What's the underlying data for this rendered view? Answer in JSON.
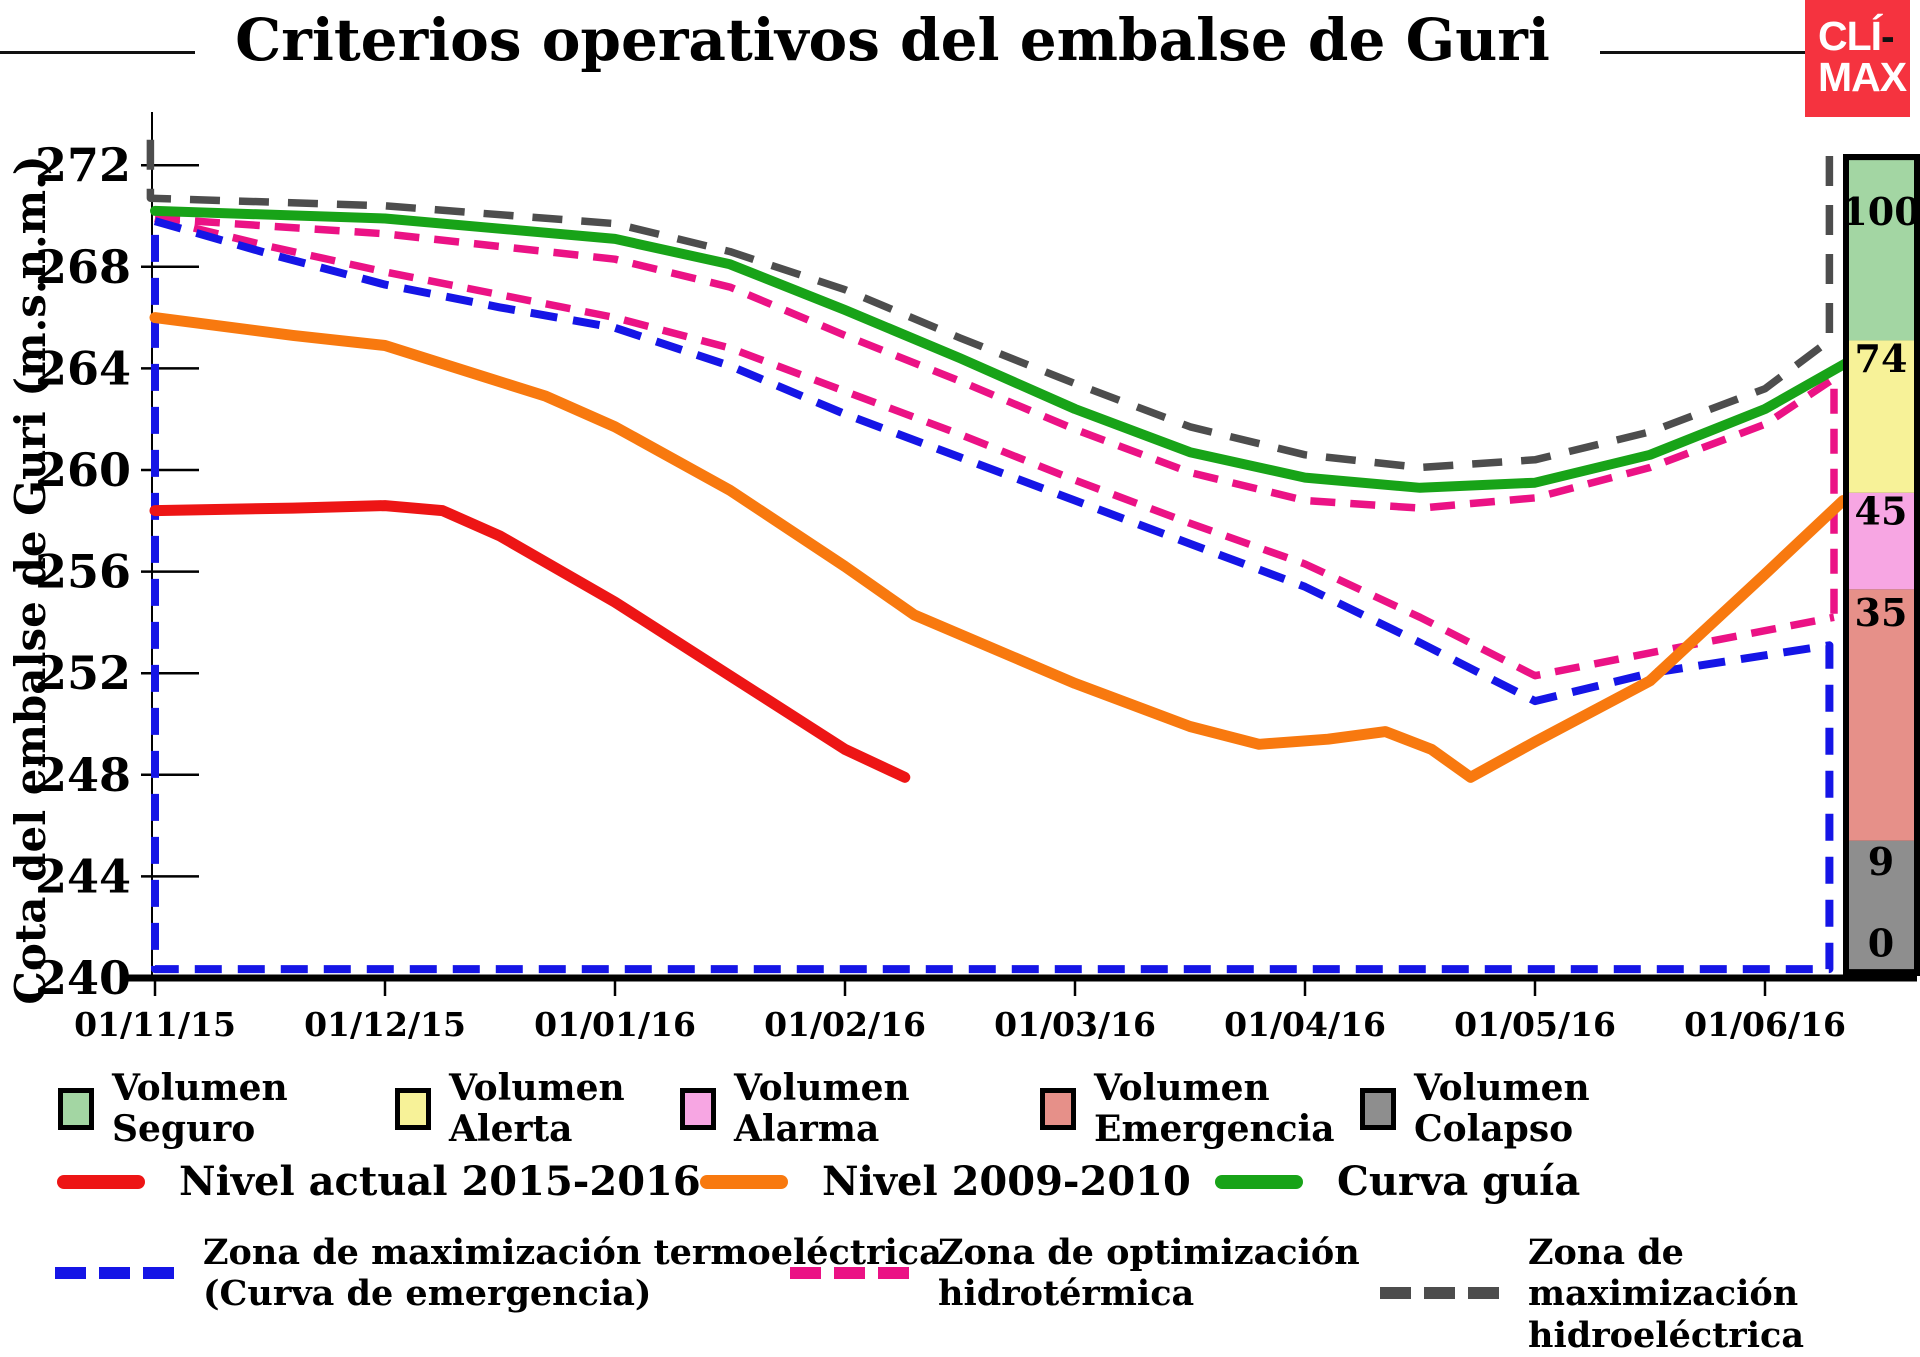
{
  "header": {
    "title": "Criterios operativos del embalse de Guri",
    "logo": {
      "top": "CLÍ",
      "dash": "-",
      "bottom": "MAX",
      "bg_color": "#f5333f"
    }
  },
  "y_axis": {
    "label": "Cota del embalse de Guri (m.s.n.m.)",
    "ticks": [
      272,
      268,
      264,
      260,
      256,
      252,
      248,
      244,
      240
    ]
  },
  "x_axis": {
    "ticks": [
      "01/11/15",
      "01/12/15",
      "01/01/16",
      "01/02/16",
      "01/03/16",
      "01/04/16",
      "01/05/16",
      "01/06/16"
    ]
  },
  "colorbar": {
    "border_color": "#000000",
    "sections": [
      {
        "name": "volumen-seguro",
        "color": "#a3d6a3",
        "from": 265.1,
        "to": 272.2
      },
      {
        "name": "volumen-alerta",
        "color": "#f7f298",
        "from": 259.1,
        "to": 265.1
      },
      {
        "name": "volumen-alarma",
        "color": "#f7a6e3",
        "from": 255.3,
        "to": 259.1
      },
      {
        "name": "volumen-emergencia",
        "color": "#e69089",
        "from": 245.4,
        "to": 255.3
      },
      {
        "name": "volumen-colapso",
        "color": "#8e8e8e",
        "from": 240.35,
        "to": 245.4
      }
    ],
    "labels": [
      {
        "text": "100",
        "at": 270.2
      },
      {
        "text": "74",
        "at": 264.4
      },
      {
        "text": "45",
        "at": 258.4
      },
      {
        "text": "35",
        "at": 254.4
      },
      {
        "text": "9",
        "at": 244.6
      },
      {
        "text": "0",
        "at": 241.4
      }
    ]
  },
  "legend": {
    "zones": [
      {
        "line1": "Volumen",
        "line2": "Seguro",
        "color": "#a3d6a3"
      },
      {
        "line1": "Volumen",
        "line2": "Alerta",
        "color": "#f7f298"
      },
      {
        "line1": "Volumen",
        "line2": "Alarma",
        "color": "#f7a6e3"
      },
      {
        "line1": "Volumen",
        "line2": "Emergencia",
        "color": "#e69089"
      },
      {
        "line1": "Volumen",
        "line2": "Colapso",
        "color": "#8e8e8e"
      }
    ],
    "lines": [
      {
        "label": "Nivel actual 2015-2016",
        "color": "#ed1515"
      },
      {
        "label": "Nivel 2009-2010",
        "color": "#f8790f"
      },
      {
        "label": "Curva guía",
        "color": "#18a318"
      }
    ],
    "dashed": [
      {
        "line1": "Zona de maximización termoeléctrica",
        "line2": "(Curva de emergencia)",
        "color": "#1515e6"
      },
      {
        "line1": "Zona de optimización",
        "line2": "hidrotérmica",
        "color": "#eb1285"
      },
      {
        "line1": "Zona de maximización",
        "line2": "hidroeléctrica",
        "color": "#4d4d4d"
      }
    ]
  },
  "chart_data": {
    "type": "line",
    "title": "Criterios operativos del embalse de Guri",
    "xlabel": "",
    "ylabel": "Cota del embalse de Guri (m.s.n.m.)",
    "x_unit": "meses desde 01/11/15 (un tick por mes)",
    "ylim": [
      240,
      273.2
    ],
    "grid": false,
    "series": [
      {
        "name": "Zona de maximización hidroeléctrica",
        "color": "#4d4d4d",
        "style": "dashed",
        "dash": "30 19",
        "width": 7.5,
        "points": [
          [
            -0.02,
            273.0
          ],
          [
            -0.02,
            270.7
          ],
          [
            1,
            270.4
          ],
          [
            2,
            269.7
          ],
          [
            2.5,
            268.6
          ],
          [
            3,
            267.1
          ],
          [
            3.5,
            265.2
          ],
          [
            4,
            263.4
          ],
          [
            4.5,
            261.7
          ],
          [
            5,
            260.6
          ],
          [
            5.5,
            260.1
          ],
          [
            6,
            260.4
          ],
          [
            6.5,
            261.5
          ],
          [
            7,
            263.2
          ],
          [
            7.28,
            265.1
          ],
          [
            7.28,
            272.4
          ]
        ]
      },
      {
        "name": "Zona de optimización hidrotérmica (límite superior)",
        "color": "#eb1285",
        "style": "dashed",
        "dash": "25 15",
        "width": 7.5,
        "points": [
          [
            0,
            269.9
          ],
          [
            1,
            269.3
          ],
          [
            2,
            268.3
          ],
          [
            2.5,
            267.2
          ],
          [
            3,
            265.3
          ],
          [
            3.5,
            263.5
          ],
          [
            4,
            261.6
          ],
          [
            4.5,
            259.9
          ],
          [
            5,
            258.8
          ],
          [
            5.5,
            258.5
          ],
          [
            6,
            258.9
          ],
          [
            6.5,
            260.1
          ],
          [
            7,
            261.8
          ],
          [
            7.3,
            263.6
          ],
          [
            7.3,
            254.2
          ]
        ]
      },
      {
        "name": "Zona de optimización hidrotérmica (límite inferior)",
        "color": "#eb1285",
        "style": "dashed",
        "dash": "25 15",
        "width": 7.5,
        "points": [
          [
            0,
            269.9
          ],
          [
            0.5,
            268.8
          ],
          [
            1,
            267.8
          ],
          [
            2,
            266.0
          ],
          [
            2.5,
            264.8
          ],
          [
            3,
            263.1
          ],
          [
            3.5,
            261.4
          ],
          [
            4,
            259.6
          ],
          [
            4.5,
            257.9
          ],
          [
            5,
            256.3
          ],
          [
            5.5,
            254.2
          ],
          [
            6,
            251.9
          ],
          [
            6.5,
            252.8
          ],
          [
            7.3,
            254.2
          ]
        ]
      },
      {
        "name": "Zona de maximización termoeléctrica (Curva de emergencia)",
        "color": "#1515e6",
        "style": "dashed",
        "dash": "27 16",
        "width": 8,
        "points": [
          [
            0,
            269.8
          ],
          [
            0.5,
            268.5
          ],
          [
            1,
            267.3
          ],
          [
            1.5,
            266.4
          ],
          [
            2,
            265.6
          ],
          [
            2.5,
            264.1
          ],
          [
            3,
            262.2
          ],
          [
            3.5,
            260.5
          ],
          [
            4,
            258.8
          ],
          [
            4.5,
            257.1
          ],
          [
            5,
            255.4
          ],
          [
            5.5,
            253.2
          ],
          [
            6,
            250.9
          ],
          [
            6.5,
            252.0
          ],
          [
            7.28,
            253.1
          ],
          [
            7.28,
            240.35
          ],
          [
            0,
            240.35
          ],
          [
            0,
            269.8
          ]
        ]
      },
      {
        "name": "Curva guía",
        "color": "#18a318",
        "style": "solid",
        "width": 10,
        "points": [
          [
            0,
            270.2
          ],
          [
            1,
            269.9
          ],
          [
            2,
            269.1
          ],
          [
            2.5,
            268.1
          ],
          [
            3,
            266.3
          ],
          [
            3.5,
            264.4
          ],
          [
            4,
            262.4
          ],
          [
            4.5,
            260.7
          ],
          [
            5,
            259.7
          ],
          [
            5.5,
            259.3
          ],
          [
            6,
            259.5
          ],
          [
            6.5,
            260.6
          ],
          [
            7,
            262.4
          ],
          [
            7.37,
            264.3
          ]
        ]
      },
      {
        "name": "Nivel 2009-2010",
        "color": "#f8790f",
        "style": "solid",
        "width": 11,
        "points": [
          [
            0,
            266.0
          ],
          [
            0.6,
            265.3
          ],
          [
            1,
            264.9
          ],
          [
            1.7,
            262.9
          ],
          [
            2,
            261.7
          ],
          [
            2.5,
            259.2
          ],
          [
            3,
            256.2
          ],
          [
            3.3,
            254.3
          ],
          [
            4,
            251.6
          ],
          [
            4.5,
            249.9
          ],
          [
            4.8,
            249.2
          ],
          [
            5.1,
            249.4
          ],
          [
            5.35,
            249.7
          ],
          [
            5.55,
            249.0
          ],
          [
            5.72,
            247.9
          ],
          [
            6,
            249.3
          ],
          [
            6.5,
            251.7
          ],
          [
            7,
            255.9
          ],
          [
            7.34,
            258.8
          ]
        ]
      },
      {
        "name": "Nivel actual 2015-2016",
        "color": "#ed1515",
        "style": "solid",
        "width": 11,
        "points": [
          [
            0,
            258.4
          ],
          [
            0.6,
            258.5
          ],
          [
            1,
            258.6
          ],
          [
            1.25,
            258.4
          ],
          [
            1.5,
            257.4
          ],
          [
            2,
            254.8
          ],
          [
            2.5,
            251.9
          ],
          [
            3,
            249.0
          ],
          [
            3.26,
            247.9
          ]
        ]
      }
    ]
  }
}
